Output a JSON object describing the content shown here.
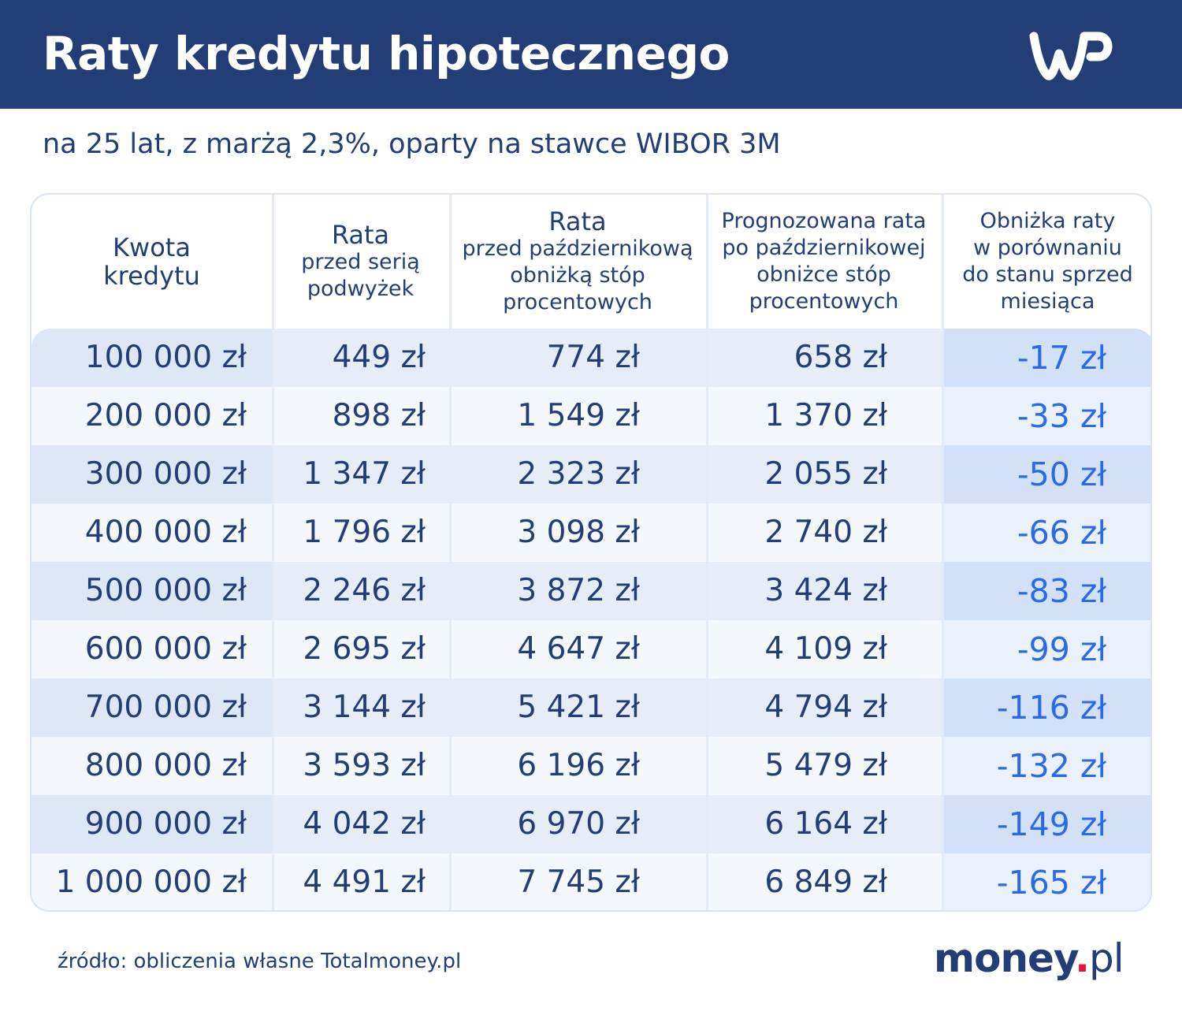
{
  "header": {
    "title": "Raty kredytu hipotecznego",
    "logo_text": "WP"
  },
  "subtitle": "na 25 lat, z marżą 2,3%, oparty na stawce WIBOR 3M",
  "chart_data": {
    "type": "table",
    "title": "Raty kredytu hipotecznego",
    "subtitle": "na 25 lat, z marżą 2,3%, oparty na stawce WIBOR 3M",
    "columns": [
      {
        "title": "Kwota kredytu",
        "lines": [
          "Kwota",
          "kredytu"
        ]
      },
      {
        "title": "Rata przed serią podwyżek",
        "lines": [
          "Rata",
          "przed serią",
          "podwyżek"
        ]
      },
      {
        "title": "Rata przed październikową obniżką stóp procentowych",
        "lines": [
          "Rata",
          "przed październikową",
          "obniżką stóp",
          "procentowych"
        ]
      },
      {
        "title": "Prognozowana rata po październikowej obniżce stóp procentowych",
        "lines": [
          "Prognozowana rata",
          "po październikowej",
          "obniżce stóp",
          "procentowych"
        ]
      },
      {
        "title": "Obniżka raty w porównaniu do stanu sprzed miesiąca",
        "lines": [
          "Obniżka raty",
          "w porównaniu",
          "do stanu sprzed",
          "miesiąca"
        ]
      }
    ],
    "rows": [
      [
        "100 000 zł",
        "449 zł",
        "774 zł",
        "658 zł",
        "-17 zł"
      ],
      [
        "200 000 zł",
        "898 zł",
        "1 549 zł",
        "1 370 zł",
        "-33 zł"
      ],
      [
        "300 000 zł",
        "1 347 zł",
        "2 323 zł",
        "2 055 zł",
        "-50 zł"
      ],
      [
        "400 000 zł",
        "1 796 zł",
        "3 098 zł",
        "2 740 zł",
        "-66 zł"
      ],
      [
        "500 000 zł",
        "2 246 zł",
        "3 872 zł",
        "3 424 zł",
        "-83 zł"
      ],
      [
        "600 000 zł",
        "2 695 zł",
        "4 647 zł",
        "4 109 zł",
        "-99 zł"
      ],
      [
        "700 000 zł",
        "3 144 zł",
        "5 421 zł",
        "4 794 zł",
        "-116 zł"
      ],
      [
        "800 000 zł",
        "3 593 zł",
        "6 196 zł",
        "5 479 zł",
        "-132 zł"
      ],
      [
        "900 000 zł",
        "4 042 zł",
        "6 970 zł",
        "6 164 zł",
        "-149 zł"
      ],
      [
        "1 000 000 zł",
        "4 491 zł",
        "7 745 zł",
        "6 849 zł",
        "-165 zł"
      ]
    ]
  },
  "footer": {
    "source": "źródło: obliczenia własne Totalmoney.pl",
    "brand_main": "money",
    "brand_dot": ".",
    "brand_tld": "pl"
  },
  "colors": {
    "header_bg": "#233e77",
    "text": "#233e77",
    "accent_blue": "#2b6ae6",
    "row_band": "#e6edf8",
    "row_band_first": "#dde7f6",
    "last_col_band": "#d3e1f8",
    "last_col_plain": "#eaf1fc",
    "brand_dot": "#e3153b"
  }
}
